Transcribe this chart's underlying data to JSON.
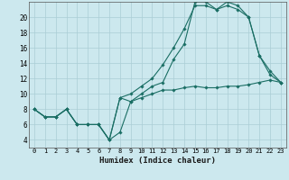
{
  "xlabel": "Humidex (Indice chaleur)",
  "bg_color": "#cce8ee",
  "grid_color": "#aacdd5",
  "line_color": "#1a6e64",
  "xlim": [
    -0.5,
    23.5
  ],
  "ylim": [
    3,
    22
  ],
  "xticks": [
    0,
    1,
    2,
    3,
    4,
    5,
    6,
    7,
    8,
    9,
    10,
    11,
    12,
    13,
    14,
    15,
    16,
    17,
    18,
    19,
    20,
    21,
    22,
    23
  ],
  "yticks": [
    4,
    6,
    8,
    10,
    12,
    14,
    16,
    18,
    20
  ],
  "line1_x": [
    0,
    1,
    2,
    3,
    4,
    5,
    6,
    7,
    8,
    9,
    10,
    11,
    12,
    13,
    14,
    15,
    16,
    17,
    18,
    19,
    20,
    21,
    22,
    23
  ],
  "line1_y": [
    8,
    7,
    7,
    8,
    6,
    6,
    6,
    4,
    9.5,
    10,
    11,
    12,
    13.8,
    16,
    18.5,
    21.5,
    21.5,
    21,
    21.5,
    21,
    20,
    15,
    12.5,
    11.5
  ],
  "line2_x": [
    0,
    1,
    2,
    3,
    4,
    5,
    6,
    7,
    8,
    9,
    10,
    11,
    12,
    13,
    14,
    15,
    16,
    17,
    18,
    19,
    20,
    21,
    22,
    23
  ],
  "line2_y": [
    8,
    7,
    7,
    8,
    6,
    6,
    6,
    4,
    9.5,
    9,
    10,
    11,
    11.5,
    14.5,
    16.5,
    22,
    22,
    21,
    22,
    21.5,
    20,
    15,
    13,
    11.5
  ],
  "line3_x": [
    0,
    1,
    2,
    3,
    4,
    5,
    6,
    7,
    8,
    9,
    10,
    11,
    12,
    13,
    14,
    15,
    16,
    17,
    18,
    19,
    20,
    21,
    22,
    23
  ],
  "line3_y": [
    8,
    7,
    7,
    8,
    6,
    6,
    6,
    4,
    5,
    9,
    9.5,
    10,
    10.5,
    10.5,
    10.8,
    11,
    10.8,
    10.8,
    11,
    11,
    11.2,
    11.5,
    11.8,
    11.5
  ],
  "xlabel_fontsize": 6.5,
  "tick_fontsize_x": 5.0,
  "tick_fontsize_y": 5.5
}
